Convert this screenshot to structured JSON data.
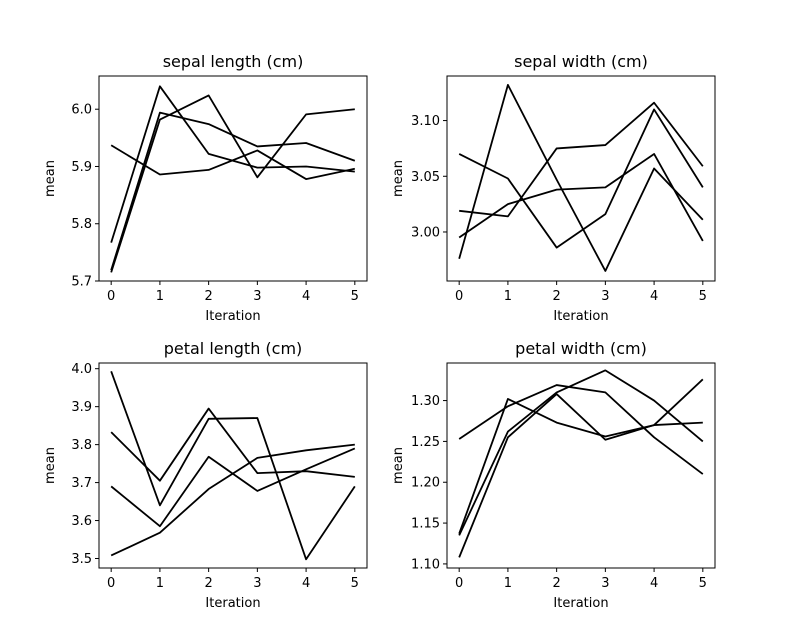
{
  "chart_data": [
    {
      "type": "line",
      "title": "sepal length (cm)",
      "xlabel": "Iteration",
      "ylabel": "mean",
      "x": [
        0,
        1,
        2,
        3,
        4,
        5
      ],
      "xticks": [
        "0",
        "1",
        "2",
        "3",
        "4",
        "5"
      ],
      "yticks": [
        "5.7",
        "5.8",
        "5.9",
        "6.0"
      ],
      "ytick_values": [
        5.7,
        5.8,
        5.9,
        6.0
      ],
      "ylim": [
        5.7,
        6.058
      ],
      "xlim": [
        -0.25,
        5.25
      ],
      "grid": false,
      "series": [
        {
          "values": [
            5.937,
            5.886,
            5.894,
            5.928,
            5.878,
            5.896
          ]
        },
        {
          "values": [
            5.767,
            6.04,
            5.922,
            5.898,
            5.9,
            5.891
          ]
        },
        {
          "values": [
            5.715,
            5.982,
            6.024,
            5.881,
            5.991,
            6.0
          ]
        },
        {
          "values": [
            5.719,
            5.994,
            5.974,
            5.935,
            5.941,
            5.91
          ]
        }
      ]
    },
    {
      "type": "line",
      "title": "sepal width (cm)",
      "xlabel": "Iteration",
      "ylabel": "mean",
      "x": [
        0,
        1,
        2,
        3,
        4,
        5
      ],
      "xticks": [
        "0",
        "1",
        "2",
        "3",
        "4",
        "5"
      ],
      "yticks": [
        "3.00",
        "3.05",
        "3.10"
      ],
      "ytick_values": [
        3.0,
        3.05,
        3.1
      ],
      "ylim": [
        2.956,
        3.14
      ],
      "xlim": [
        -0.25,
        5.25
      ],
      "grid": false,
      "series": [
        {
          "values": [
            3.07,
            3.048,
            2.986,
            3.016,
            3.11,
            3.04
          ]
        },
        {
          "values": [
            2.976,
            3.132,
            3.047,
            2.965,
            3.057,
            3.011
          ]
        },
        {
          "values": [
            3.019,
            3.014,
            3.075,
            3.078,
            3.116,
            3.059
          ]
        },
        {
          "values": [
            2.995,
            3.025,
            3.038,
            3.04,
            3.07,
            2.992
          ]
        }
      ]
    },
    {
      "type": "line",
      "title": "petal length (cm)",
      "xlabel": "Iteration",
      "ylabel": "mean",
      "x": [
        0,
        1,
        2,
        3,
        4,
        5
      ],
      "xticks": [
        "0",
        "1",
        "2",
        "3",
        "4",
        "5"
      ],
      "yticks": [
        "3.5",
        "3.6",
        "3.7",
        "3.8",
        "3.9",
        "4.0"
      ],
      "ytick_values": [
        3.5,
        3.6,
        3.7,
        3.8,
        3.9,
        4.0
      ],
      "ylim": [
        3.475,
        4.015
      ],
      "xlim": [
        -0.25,
        5.25
      ],
      "grid": false,
      "series": [
        {
          "values": [
            3.993,
            3.64,
            3.868,
            3.87,
            3.498,
            3.69
          ]
        },
        {
          "values": [
            3.833,
            3.705,
            3.895,
            3.725,
            3.73,
            3.715
          ]
        },
        {
          "values": [
            3.69,
            3.585,
            3.768,
            3.678,
            3.735,
            3.79
          ]
        },
        {
          "values": [
            3.508,
            3.568,
            3.683,
            3.765,
            3.785,
            3.8
          ]
        }
      ]
    },
    {
      "type": "line",
      "title": "petal width (cm)",
      "xlabel": "Iteration",
      "ylabel": "mean",
      "x": [
        0,
        1,
        2,
        3,
        4,
        5
      ],
      "xticks": [
        "0",
        "1",
        "2",
        "3",
        "4",
        "5"
      ],
      "yticks": [
        "1.10",
        "1.15",
        "1.20",
        "1.25",
        "1.30"
      ],
      "ytick_values": [
        1.1,
        1.15,
        1.2,
        1.25,
        1.3
      ],
      "ylim": [
        1.095,
        1.346
      ],
      "xlim": [
        -0.25,
        5.25
      ],
      "grid": false,
      "series": [
        {
          "values": [
            1.253,
            1.293,
            1.319,
            1.31,
            1.255,
            1.21
          ]
        },
        {
          "values": [
            1.137,
            1.302,
            1.273,
            1.256,
            1.27,
            1.273
          ]
        },
        {
          "values": [
            1.135,
            1.262,
            1.31,
            1.337,
            1.3,
            1.25
          ]
        },
        {
          "values": [
            1.108,
            1.255,
            1.308,
            1.252,
            1.27,
            1.326
          ]
        }
      ]
    }
  ]
}
